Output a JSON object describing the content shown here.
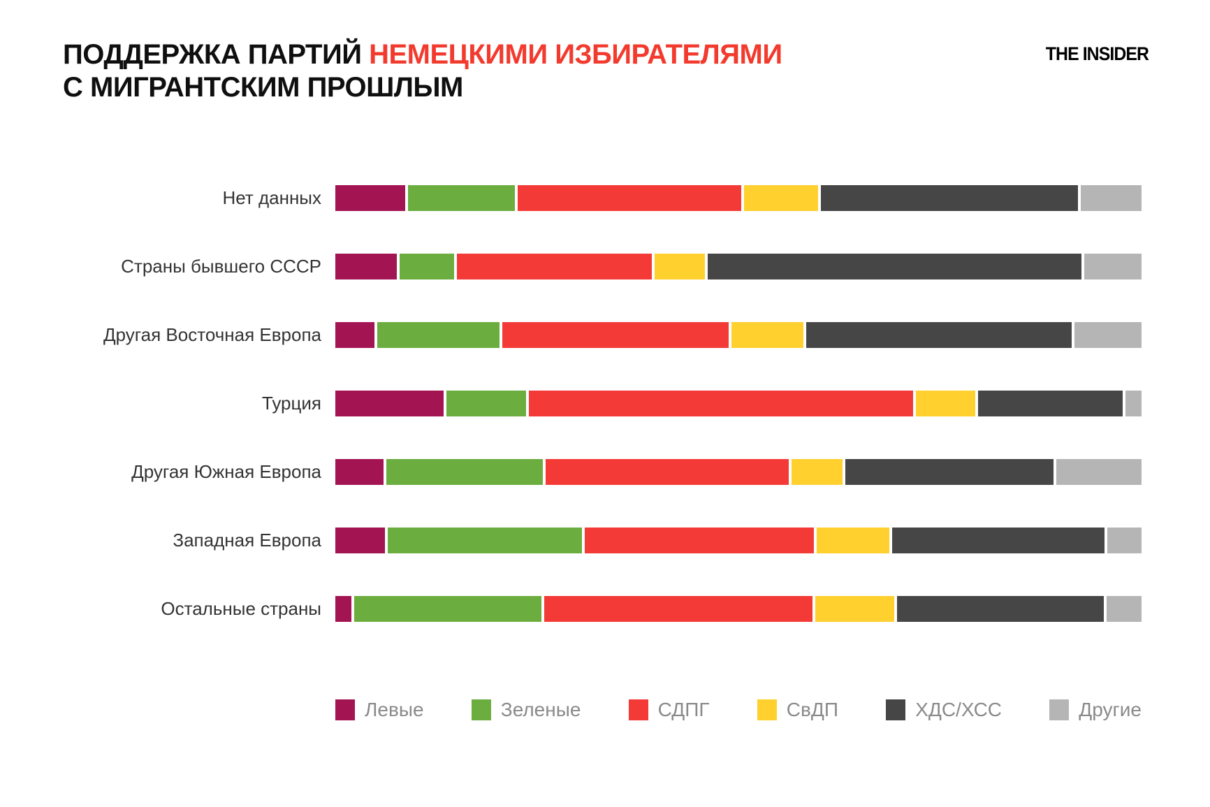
{
  "header": {
    "title_line1_black": "ПОДДЕРЖКА ПАРТИЙ ",
    "title_line1_red": "НЕМЕЦКИМИ ИЗБИРАТЕЛЯМИ",
    "title_line2": "С МИГРАНТСКИМ ПРОШЛЫМ",
    "logo_text": "THE INSIDER"
  },
  "colors": {
    "title_accent": "#F23B2E",
    "category_label_text": "#333333",
    "legend_text": "#8A8A8A",
    "left_party": "#A31453",
    "greens_party": "#6CAD3F",
    "spd_party": "#F43A36",
    "fdp_party": "#FFD02E",
    "cdu_csu_party": "#464646",
    "others_party": "#B5B5B5"
  },
  "chart_data": {
    "type": "bar",
    "orientation": "horizontal",
    "stacked": true,
    "unit": "percent",
    "xlim": [
      0,
      100
    ],
    "grid": false,
    "legend_position": "bottom",
    "title": "ПОДДЕРЖКА ПАРТИЙ НЕМЕЦКИМИ ИЗБИРАТЕЛЯМИ С МИГРАНТСКИМ ПРОШЛЫМ",
    "categories": [
      "Нет данных",
      "Страны бывшего СССР",
      "Другая Восточная Европа",
      "Турция",
      "Другая Южная Европа",
      "Западная Европа",
      "Остальные страны"
    ],
    "series": [
      {
        "name": "Левые",
        "color": "#A31453",
        "values": [
          8.8,
          7.8,
          4.9,
          13.7,
          6.1,
          6.3,
          2.0
        ]
      },
      {
        "name": "Зеленые",
        "color": "#6CAD3F",
        "values": [
          13.5,
          6.8,
          15.5,
          10.0,
          19.7,
          24.5,
          23.7
        ]
      },
      {
        "name": "СДПГ",
        "color": "#F43A36",
        "values": [
          28.2,
          24.6,
          28.5,
          48.5,
          30.7,
          28.9,
          33.8
        ]
      },
      {
        "name": "СвДП",
        "color": "#FFD02E",
        "values": [
          9.4,
          6.4,
          9.1,
          7.5,
          6.5,
          9.2,
          10.0
        ]
      },
      {
        "name": "ХДС/ХСС",
        "color": "#464646",
        "values": [
          32.4,
          47.2,
          33.5,
          18.3,
          26.2,
          26.8,
          26.1
        ]
      },
      {
        "name": "Другие",
        "color": "#B5B5B5",
        "values": [
          7.7,
          7.2,
          8.5,
          2.0,
          10.8,
          4.3,
          4.4
        ]
      }
    ]
  }
}
